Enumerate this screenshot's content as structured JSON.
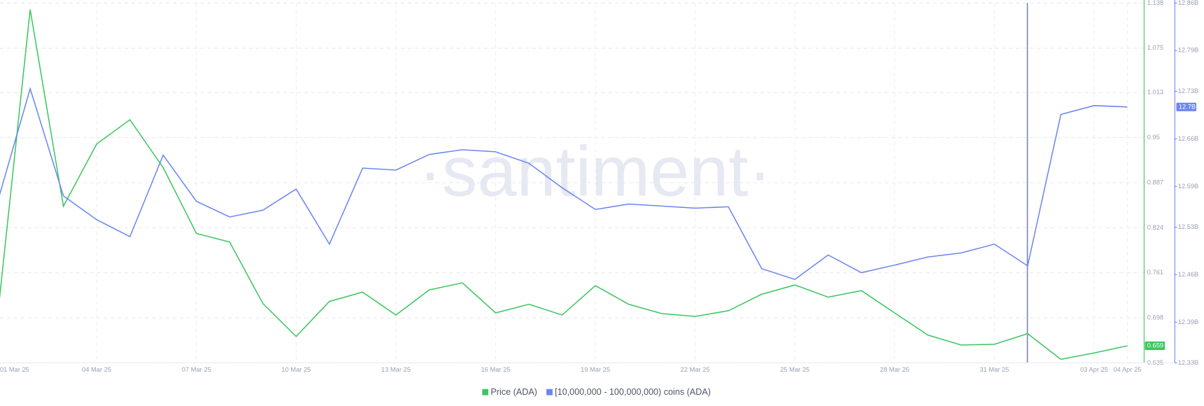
{
  "chart_data": {
    "type": "line",
    "watermark": "·santiment·",
    "categories": [
      "01 Mar 25",
      null,
      null,
      "04 Mar 25",
      null,
      null,
      "07 Mar 25",
      null,
      null,
      "10 Mar 25",
      null,
      null,
      "13 Mar 25",
      null,
      null,
      "16 Mar 25",
      null,
      null,
      "19 Mar 25",
      null,
      null,
      "22 Mar 25",
      null,
      null,
      "25 Mar 25",
      null,
      null,
      "28 Mar 25",
      null,
      null,
      "31 Mar 25",
      null,
      null,
      "03 Apr 25",
      "04 Apr 25"
    ],
    "ylim": [
      0.635,
      1.138
    ],
    "yticks": [
      1.138,
      1.075,
      1.013,
      0.95,
      0.887,
      0.824,
      0.761,
      0.698,
      0.635
    ],
    "y2lim": [
      12.33,
      12.86
    ],
    "y2ticks": [
      {
        "value": 12.86,
        "label": "12.86B"
      },
      {
        "value": 12.79,
        "label": "12.79B"
      },
      {
        "value": 12.73,
        "label": "12.73B"
      },
      {
        "value": 12.66,
        "label": "12.66B"
      },
      {
        "value": 12.59,
        "label": "12.59B"
      },
      {
        "value": 12.53,
        "label": "12.53B"
      },
      {
        "value": 12.46,
        "label": "12.46B"
      },
      {
        "value": 12.39,
        "label": "12.39B"
      },
      {
        "value": 12.33,
        "label": "12.33B"
      }
    ],
    "grid": true,
    "series": [
      {
        "name": "Price (ADA)",
        "color": "#3cc65f",
        "axis": "y",
        "values": [
          0.691,
          1.129,
          0.854,
          0.941,
          0.975,
          0.908,
          0.816,
          0.804,
          0.718,
          0.672,
          0.721,
          0.734,
          0.702,
          0.737,
          0.747,
          0.705,
          0.717,
          0.702,
          0.743,
          0.717,
          0.704,
          0.7,
          0.708,
          0.731,
          0.744,
          0.727,
          0.736,
          0.705,
          0.674,
          0.66,
          0.661,
          0.676,
          0.64,
          0.649,
          0.659
        ],
        "value_labels": [
          null,
          null,
          null,
          null,
          null,
          null,
          null,
          null,
          null,
          null,
          null,
          null,
          null,
          null,
          null,
          null,
          null,
          null,
          null,
          null,
          null,
          null,
          null,
          null,
          null,
          null,
          null,
          null,
          null,
          null,
          null,
          null,
          null,
          null,
          "0.659"
        ]
      },
      {
        "name": "[10,000,000 - 100,000,000) coins (ADA)",
        "color": "#6b86f0",
        "axis": "y2",
        "values": [
          12.564,
          12.734,
          12.576,
          12.541,
          12.516,
          12.636,
          12.568,
          12.545,
          12.555,
          12.586,
          12.505,
          12.617,
          12.614,
          12.637,
          12.644,
          12.641,
          12.624,
          12.588,
          12.556,
          12.564,
          12.561,
          12.558,
          12.56,
          12.469,
          12.453,
          12.489,
          12.463,
          12.474,
          12.486,
          12.492,
          12.505,
          12.473,
          12.696,
          12.709,
          12.707
        ],
        "value_labels": [
          null,
          null,
          null,
          null,
          null,
          null,
          null,
          null,
          null,
          null,
          null,
          null,
          null,
          null,
          null,
          null,
          null,
          null,
          null,
          null,
          null,
          null,
          null,
          null,
          null,
          null,
          null,
          null,
          null,
          null,
          null,
          null,
          null,
          null,
          "12.7B"
        ]
      }
    ]
  }
}
